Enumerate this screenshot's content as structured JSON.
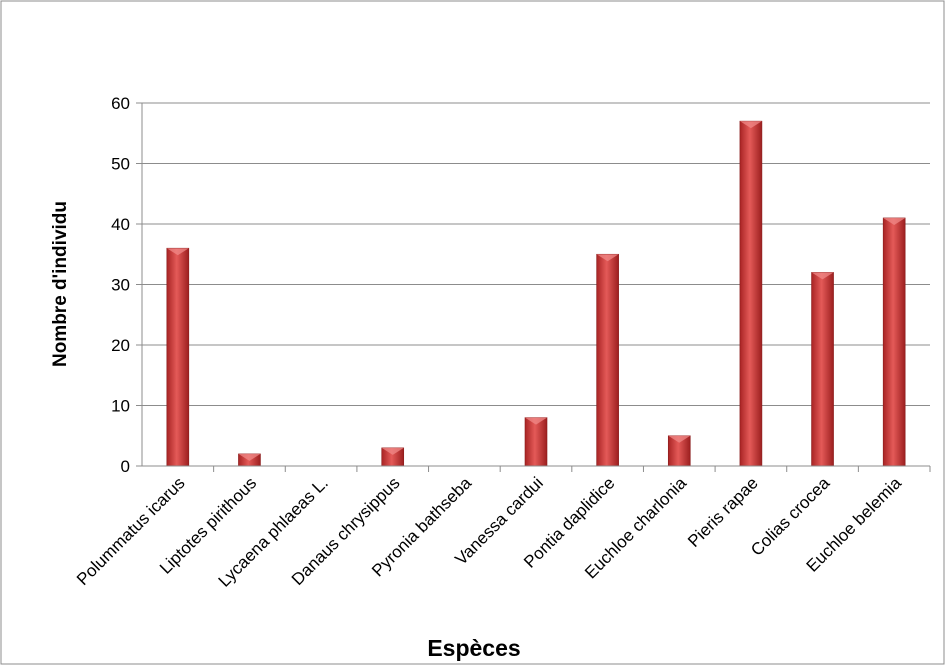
{
  "chart_data": {
    "type": "bar",
    "title": "",
    "xlabel": "Espèces",
    "ylabel": "Nombre d'individu",
    "ylim": [
      0,
      60
    ],
    "yticks": [
      0,
      10,
      20,
      30,
      40,
      50,
      60
    ],
    "grid": true,
    "legend": "none",
    "bar_color": "#d9403f",
    "categories": [
      "Polummatus icarus",
      "Liptotes pirithous",
      "Lycaena phlaeas L.",
      "Danaus chrysippus",
      "Pyronia bathseba",
      "Vanessa cardui",
      "Pontia daplidice",
      "Euchloe charlonia",
      "Pieris rapae",
      "Colias crocea",
      "Euchloe belemia"
    ],
    "values": [
      36,
      2,
      0,
      3,
      0,
      8,
      35,
      5,
      57,
      32,
      41
    ]
  }
}
